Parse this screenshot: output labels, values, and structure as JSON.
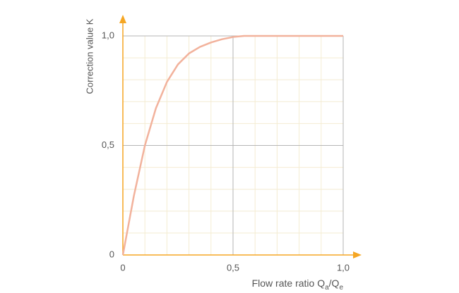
{
  "chart_data": {
    "type": "line",
    "x_label": [
      "Flow rate ratio Q",
      "a",
      "/Q",
      "e"
    ],
    "y_label": "Correction value K",
    "x": [
      0,
      0.05,
      0.1,
      0.15,
      0.2,
      0.25,
      0.3,
      0.35,
      0.4,
      0.45,
      0.5,
      0.55,
      0.6,
      0.8,
      1.0
    ],
    "series": [
      {
        "color": "#f2b29c",
        "values": [
          0,
          0.27,
          0.5,
          0.67,
          0.79,
          0.87,
          0.92,
          0.95,
          0.97,
          0.985,
          0.995,
          1.0,
          1.0,
          1.0,
          1.0
        ]
      }
    ],
    "xlim": [
      0,
      1
    ],
    "ylim": [
      0,
      1
    ],
    "xticks": [
      {
        "value": 0,
        "label": "0"
      },
      {
        "value": 0.5,
        "label": "0,5"
      },
      {
        "value": 1,
        "label": "1,0"
      }
    ],
    "yticks": [
      {
        "value": 0,
        "label": "0"
      },
      {
        "value": 0.5,
        "label": "0,5"
      },
      {
        "value": 1,
        "label": "1,0"
      }
    ],
    "xticks_minor": [
      0.1,
      0.2,
      0.3,
      0.4,
      0.6,
      0.7,
      0.8,
      0.9
    ],
    "yticks_minor": [
      0.1,
      0.2,
      0.3,
      0.4,
      0.6,
      0.7,
      0.8,
      0.9
    ],
    "grid": true,
    "axis_color": "#f5a623"
  }
}
